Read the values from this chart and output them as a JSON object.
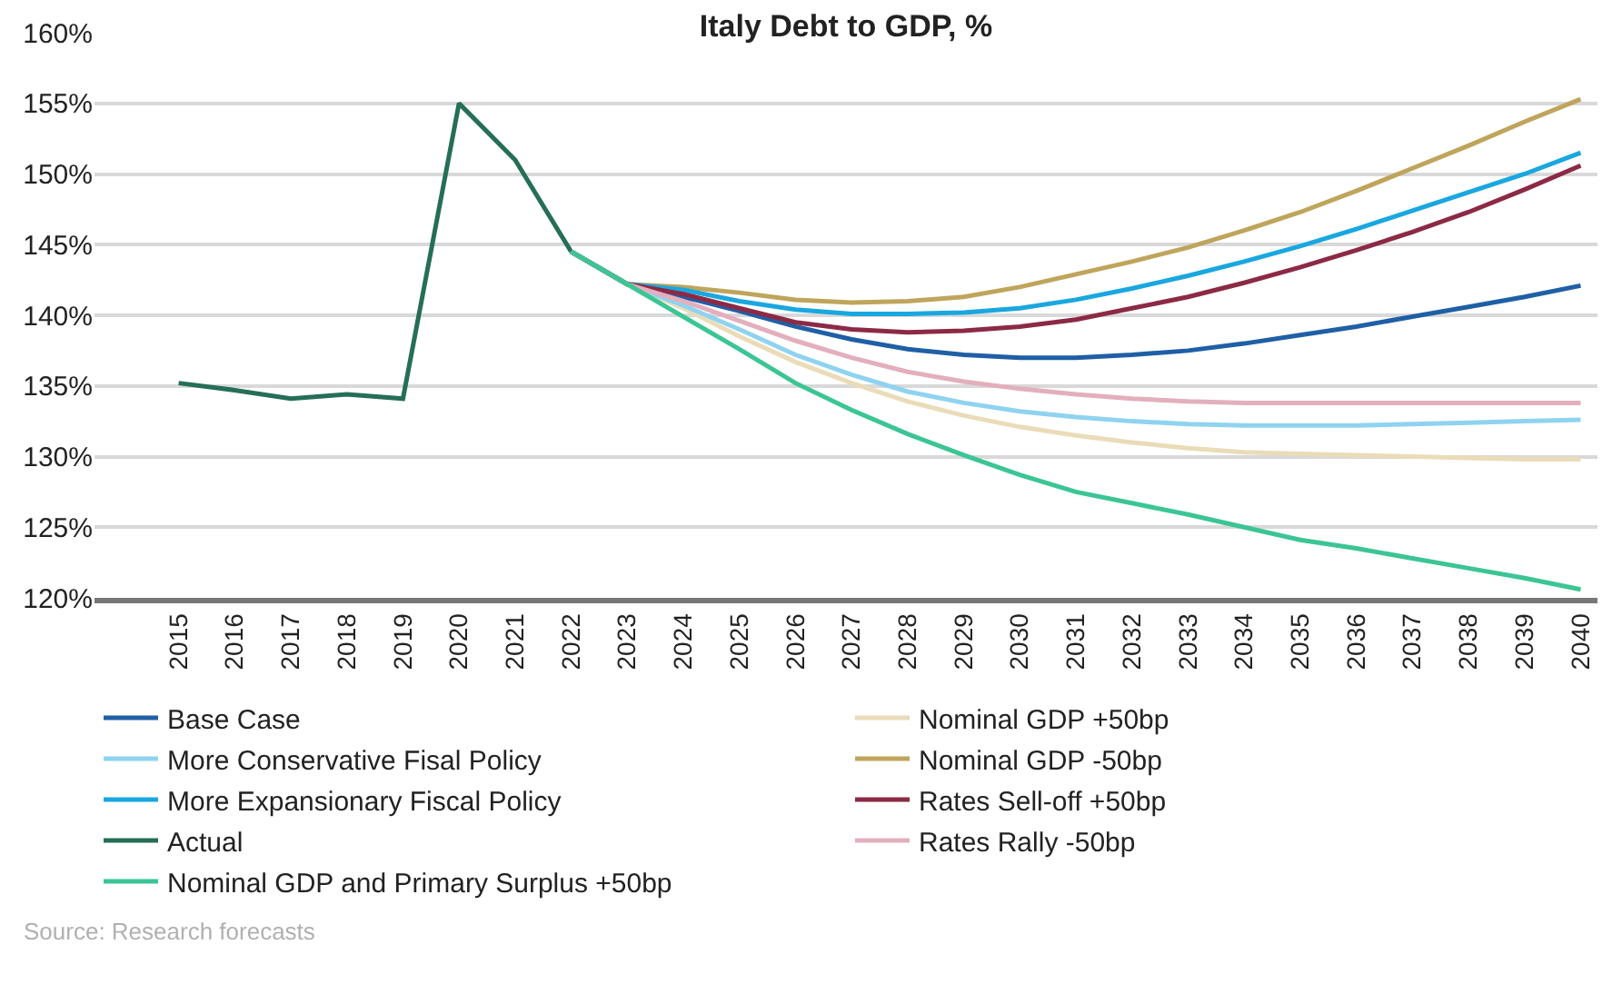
{
  "chart_data": {
    "type": "line",
    "title": "Italy Debt to GDP, %",
    "xlim": [
      2013.5,
      2040.3
    ],
    "xticks": [
      2015,
      2016,
      2017,
      2018,
      2019,
      2020,
      2021,
      2022,
      2023,
      2024,
      2025,
      2026,
      2027,
      2028,
      2029,
      2030,
      2031,
      2032,
      2033,
      2034,
      2035,
      2036,
      2037,
      2038,
      2039,
      2040
    ],
    "ylim": [
      120,
      160
    ],
    "yticks": [
      {
        "value": 120,
        "label": "120%"
      },
      {
        "value": 125,
        "label": "125%"
      },
      {
        "value": 130,
        "label": "130%"
      },
      {
        "value": 135,
        "label": "135%"
      },
      {
        "value": 140,
        "label": "140%"
      },
      {
        "value": 145,
        "label": "145%"
      },
      {
        "value": 150,
        "label": "150%"
      },
      {
        "value": 155,
        "label": "155%"
      },
      {
        "value": 160,
        "label": "160%"
      }
    ],
    "grid": "y",
    "legend": "bottom",
    "marker": "none",
    "line_style": "solid",
    "annotations": [
      "Source: Research forecasts"
    ],
    "series": [
      {
        "name": "Base Case",
        "color": "#1f5fa6",
        "x": [
          2022,
          2023,
          2024,
          2025,
          2026,
          2027,
          2028,
          2029,
          2030,
          2031,
          2032,
          2033,
          2034,
          2035,
          2036,
          2037,
          2038,
          2039,
          2040
        ],
        "values": [
          144.5,
          142.2,
          141.3,
          140.3,
          139.2,
          138.3,
          137.6,
          137.2,
          137.0,
          137.0,
          137.2,
          137.5,
          138.0,
          138.6,
          139.2,
          139.9,
          140.6,
          141.3,
          142.1
        ]
      },
      {
        "name": "Nominal GDP +50bp",
        "color": "#eadcb8",
        "x": [
          2022,
          2023,
          2024,
          2025,
          2026,
          2027,
          2028,
          2029,
          2030,
          2031,
          2032,
          2033,
          2034,
          2035,
          2036,
          2037,
          2038,
          2039,
          2040
        ],
        "values": [
          144.5,
          142.2,
          140.5,
          138.5,
          136.7,
          135.2,
          133.9,
          132.9,
          132.1,
          131.5,
          131.0,
          130.6,
          130.3,
          130.2,
          130.1,
          130.0,
          129.9,
          129.8,
          129.8
        ]
      },
      {
        "name": "More Conservative Fisal Policy",
        "color": "#8fd3f0",
        "x": [
          2022,
          2023,
          2024,
          2025,
          2026,
          2027,
          2028,
          2029,
          2030,
          2031,
          2032,
          2033,
          2034,
          2035,
          2036,
          2037,
          2038,
          2039,
          2040
        ],
        "values": [
          144.5,
          142.2,
          140.7,
          139.0,
          137.2,
          135.8,
          134.6,
          133.8,
          133.2,
          132.8,
          132.5,
          132.3,
          132.2,
          132.2,
          132.2,
          132.3,
          132.4,
          132.5,
          132.6
        ]
      },
      {
        "name": "Nominal GDP -50bp",
        "color": "#bfa55c",
        "x": [
          2022,
          2023,
          2024,
          2025,
          2026,
          2027,
          2028,
          2029,
          2030,
          2031,
          2032,
          2033,
          2034,
          2035,
          2036,
          2037,
          2038,
          2039,
          2040
        ],
        "values": [
          144.5,
          142.2,
          142.0,
          141.6,
          141.1,
          140.9,
          141.0,
          141.3,
          142.0,
          142.9,
          143.8,
          144.8,
          146.0,
          147.3,
          148.8,
          150.4,
          152.0,
          153.7,
          155.3
        ]
      },
      {
        "name": "More Expansionary Fiscal Policy",
        "color": "#1aa7e0",
        "x": [
          2022,
          2023,
          2024,
          2025,
          2026,
          2027,
          2028,
          2029,
          2030,
          2031,
          2032,
          2033,
          2034,
          2035,
          2036,
          2037,
          2038,
          2039,
          2040
        ],
        "values": [
          144.5,
          142.2,
          141.8,
          141.0,
          140.4,
          140.1,
          140.1,
          140.2,
          140.5,
          141.1,
          141.9,
          142.8,
          143.8,
          144.9,
          146.1,
          147.4,
          148.7,
          150.0,
          151.5
        ]
      },
      {
        "name": "Rates Sell-off +50bp",
        "color": "#8c2a45",
        "x": [
          2022,
          2023,
          2024,
          2025,
          2026,
          2027,
          2028,
          2029,
          2030,
          2031,
          2032,
          2033,
          2034,
          2035,
          2036,
          2037,
          2038,
          2039,
          2040
        ],
        "values": [
          144.5,
          142.2,
          141.5,
          140.5,
          139.5,
          139.0,
          138.8,
          138.9,
          139.2,
          139.7,
          140.5,
          141.3,
          142.3,
          143.4,
          144.6,
          145.9,
          147.3,
          148.9,
          150.6
        ]
      },
      {
        "name": "Actual",
        "color": "#256e58",
        "x": [
          2015,
          2016,
          2017,
          2018,
          2019,
          2020,
          2021,
          2022
        ],
        "values": [
          135.2,
          134.7,
          134.1,
          134.4,
          134.1,
          155.0,
          151.0,
          144.5
        ]
      },
      {
        "name": "Rates Rally -50bp",
        "color": "#e3afbc",
        "x": [
          2022,
          2023,
          2024,
          2025,
          2026,
          2027,
          2028,
          2029,
          2030,
          2031,
          2032,
          2033,
          2034,
          2035,
          2036,
          2037,
          2038,
          2039,
          2040
        ],
        "values": [
          144.5,
          142.2,
          141.0,
          139.6,
          138.2,
          137.0,
          136.0,
          135.3,
          134.8,
          134.4,
          134.1,
          133.9,
          133.8,
          133.8,
          133.8,
          133.8,
          133.8,
          133.8,
          133.8
        ]
      },
      {
        "name": "Nominal GDP and Primary Surplus +50bp",
        "color": "#3cc594",
        "x": [
          2022,
          2023,
          2024,
          2025,
          2026,
          2027,
          2028,
          2029,
          2030,
          2031,
          2032,
          2033,
          2034,
          2035,
          2036,
          2037,
          2038,
          2039,
          2040
        ],
        "values": [
          144.5,
          142.2,
          139.9,
          137.6,
          135.2,
          133.3,
          131.6,
          130.1,
          128.7,
          127.5,
          126.7,
          125.9,
          125.0,
          124.1,
          123.5,
          122.8,
          122.1,
          121.4,
          120.6
        ]
      }
    ]
  }
}
